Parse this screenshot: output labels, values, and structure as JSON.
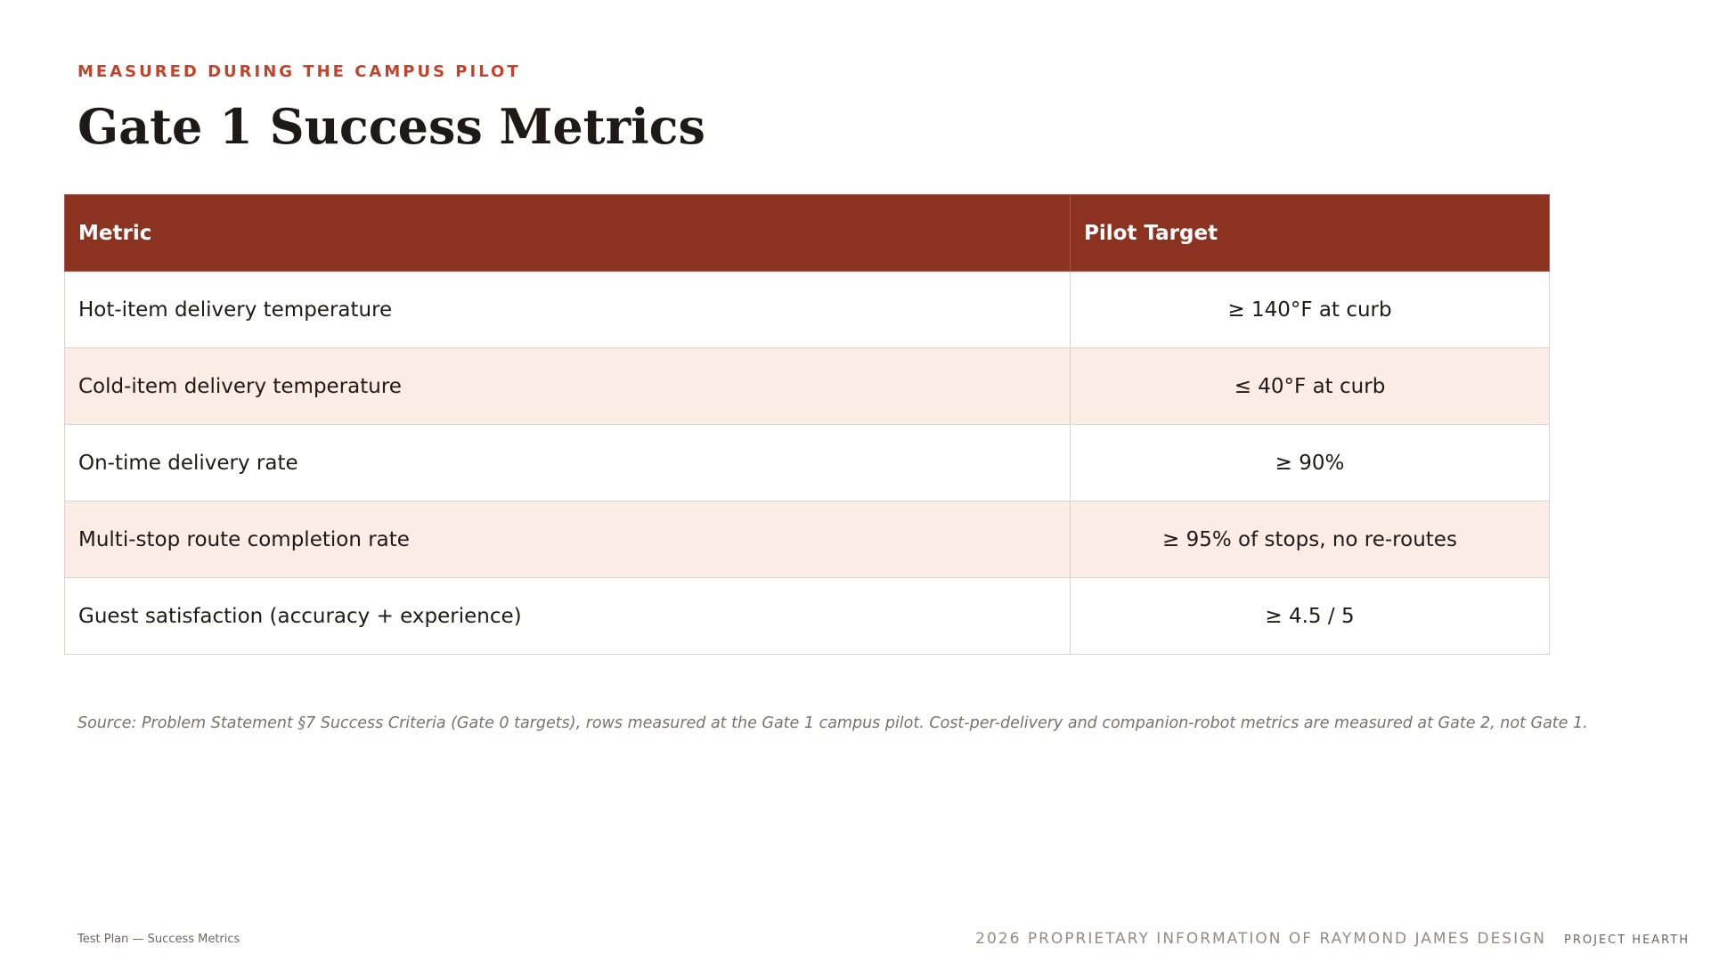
{
  "header": {
    "eyebrow": "MEASURED DURING THE CAMPUS PILOT",
    "title": "Gate 1 Success Metrics"
  },
  "table": {
    "columns": [
      "Metric",
      "Pilot Target"
    ],
    "rows": [
      {
        "metric": "Hot-item delivery temperature",
        "target": "≥ 140°F at curb"
      },
      {
        "metric": "Cold-item delivery temperature",
        "target": "≤ 40°F at curb"
      },
      {
        "metric": "On-time delivery rate",
        "target": "≥ 90%"
      },
      {
        "metric": "Multi-stop route completion rate",
        "target": "≥ 95% of stops, no re-routes"
      },
      {
        "metric": "Guest satisfaction (accuracy + experience)",
        "target": "≥ 4.5 / 5"
      }
    ]
  },
  "source_note": "Source: Problem Statement §7 Success Criteria (Gate 0 targets), rows measured at the Gate 1 campus pilot. Cost-per-delivery and companion-robot metrics are measured at Gate 2, not Gate 1.",
  "footer": {
    "left": "Test Plan — Success Metrics",
    "confidential": "2026 PROPRIETARY INFORMATION OF RAYMOND JAMES DESIGN",
    "project": "PROJECT HEARTH"
  },
  "colors": {
    "accent": "#c0432a",
    "header_fill": "#8c3220",
    "alt_row": "#fbece6"
  }
}
